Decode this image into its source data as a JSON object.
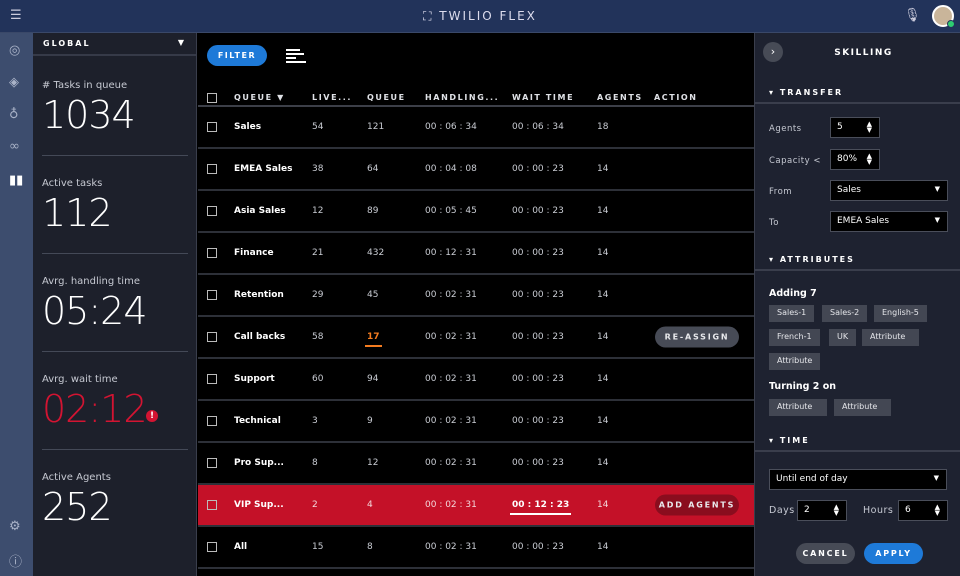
{
  "header": {
    "title": "TWILIO FLEX",
    "menu_icon": "hamburger-icon",
    "mic_icon": "microphone-icon"
  },
  "rail": [
    "compass-icon",
    "layers-icon",
    "lightbulb-icon",
    "glasses-icon",
    "bar-chart-icon",
    "gear-icon",
    "help-icon"
  ],
  "stats": {
    "scope": "GLOBAL",
    "items": [
      {
        "label": "# Tasks in queue",
        "value": "1034"
      },
      {
        "label": "Active tasks",
        "value": "112"
      },
      {
        "label": "Avrg. handling time",
        "value": "05:24"
      },
      {
        "label": "Avrg. wait time",
        "value": "02:12",
        "alert": "!"
      },
      {
        "label": "Active Agents",
        "value": "252"
      }
    ]
  },
  "table": {
    "filter_label": "FILTER",
    "columns": [
      "QUEUE",
      "LIVE...",
      "QUEUE",
      "HANDLING...",
      "WAIT TIME",
      "AGENTS",
      "ACTION"
    ],
    "rows": [
      {
        "name": "Sales",
        "live": "54",
        "queue": "121",
        "handling": "00 : 06 : 34",
        "wait": "00 : 06 : 34",
        "agents": "18"
      },
      {
        "name": "EMEA Sales",
        "live": "38",
        "queue": "64",
        "handling": "00 : 04 : 08",
        "wait": "00 : 00 : 23",
        "agents": "14"
      },
      {
        "name": "Asia Sales",
        "live": "12",
        "queue": "89",
        "handling": "00 : 05 : 45",
        "wait": "00 : 00 : 23",
        "agents": "14"
      },
      {
        "name": "Finance",
        "live": "21",
        "queue": "432",
        "handling": "00 : 12 : 31",
        "wait": "00 : 00 : 23",
        "agents": "14"
      },
      {
        "name": "Retention",
        "live": "29",
        "queue": "45",
        "handling": "00 : 02 : 31",
        "wait": "00 : 00 : 23",
        "agents": "14"
      },
      {
        "name": "Call backs",
        "live": "58",
        "queue": "17",
        "handling": "00 : 02 : 31",
        "wait": "00 : 00 : 23",
        "agents": "14",
        "action": "RE-ASSIGN",
        "queue_warn": true
      },
      {
        "name": "Support",
        "live": "60",
        "queue": "94",
        "handling": "00 : 02 : 31",
        "wait": "00 : 00 : 23",
        "agents": "14"
      },
      {
        "name": "Technical",
        "live": "3",
        "queue": "9",
        "handling": "00 : 02 : 31",
        "wait": "00 : 00 : 23",
        "agents": "14"
      },
      {
        "name": "Pro Sup...",
        "live": "8",
        "queue": "12",
        "handling": "00 : 02 : 31",
        "wait": "00 : 00 : 23",
        "agents": "14"
      },
      {
        "name": "VIP Sup...",
        "live": "2",
        "queue": "4",
        "handling": "00 : 02 : 31",
        "wait": "00 : 12 : 23",
        "agents": "14",
        "action": "ADD AGENTS",
        "alert": true
      },
      {
        "name": "All",
        "live": "15",
        "queue": "8",
        "handling": "00 : 02 : 31",
        "wait": "00 : 00 : 23",
        "agents": "14"
      }
    ]
  },
  "skilling": {
    "title": "SKILLING",
    "transfer": {
      "heading": "TRANSFER",
      "agents_label": "Agents",
      "agents": "5",
      "capacity_label": "Capacity <",
      "capacity": "80%",
      "from_label": "From",
      "from": "Sales",
      "to_label": "To",
      "to": "EMEA Sales"
    },
    "attributes": {
      "heading": "ATTRIBUTES",
      "adding_label": "Adding 7",
      "adding": [
        "Sales-1",
        "Sales-2",
        "English-5",
        "French-1",
        "UK",
        "Attribute",
        "Attribute"
      ],
      "turning_label": "Turning 2 on",
      "turning": [
        "Attribute",
        "Attribute"
      ]
    },
    "time": {
      "heading": "TIME",
      "until": "Until end of day",
      "days_label": "Days",
      "days": "2",
      "hours_label": "Hours",
      "hours": "6"
    },
    "cancel": "CANCEL",
    "apply": "APPLY"
  },
  "colors": {
    "header": "#22335a",
    "accent": "#1e7ad8",
    "alert": "#c41128",
    "warning": "#f47c20"
  }
}
